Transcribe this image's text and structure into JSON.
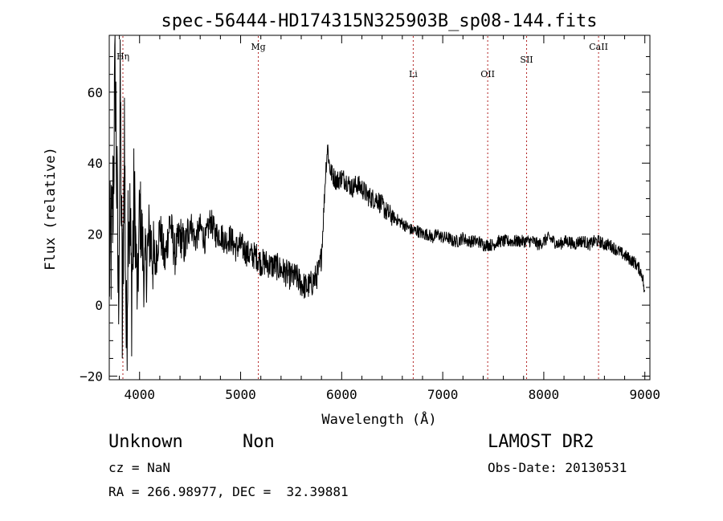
{
  "chart_data": {
    "type": "line",
    "title": "spec-56444-HD174315N325903B_sp08-144.fits",
    "xlabel": "Wavelength (Å)",
    "ylabel": "Flux (relative)",
    "xlim": [
      3700,
      9050
    ],
    "ylim": [
      -21,
      76
    ],
    "xticks": [
      4000,
      5000,
      6000,
      7000,
      8000,
      9000
    ],
    "yticks": [
      -20,
      0,
      20,
      40,
      60
    ],
    "xtick_labels": [
      "4000",
      "5000",
      "6000",
      "7000",
      "8000",
      "9000"
    ],
    "ytick_labels": [
      "−20",
      "0",
      "20",
      "40",
      "60"
    ],
    "grid": false,
    "line_color": "#000000",
    "marker_color": "#b22222",
    "series": [
      {
        "x": [
          3700,
          3730,
          3760,
          3790,
          3810,
          3830,
          3850,
          3870,
          3890,
          3920,
          3950,
          3980,
          4000,
          4050,
          4100,
          4150,
          4200,
          4250,
          4300,
          4350,
          4400,
          4450,
          4500,
          4550,
          4600,
          4650,
          4700,
          4750,
          4800,
          4850,
          4900,
          4950,
          5000,
          5050,
          5100,
          5150,
          5200,
          5250,
          5300,
          5350,
          5400,
          5450,
          5500,
          5550,
          5600,
          5650,
          5700,
          5750,
          5780,
          5800,
          5820,
          5840,
          5860,
          5880,
          5900,
          5950,
          6000,
          6050,
          6100,
          6150,
          6200,
          6250,
          6300,
          6350,
          6400,
          6450,
          6500,
          6550,
          6600,
          6650,
          6700,
          6750,
          6800,
          6850,
          6900,
          6950,
          7000,
          7050,
          7100,
          7150,
          7200,
          7250,
          7300,
          7350,
          7400,
          7450,
          7500,
          7550,
          7600,
          7650,
          7700,
          7750,
          7800,
          7850,
          7900,
          7950,
          8000,
          8050,
          8100,
          8150,
          8200,
          8250,
          8300,
          8350,
          8400,
          8450,
          8500,
          8550,
          8600,
          8650,
          8700,
          8750,
          8800,
          8850,
          8900,
          8950,
          8980,
          9000
        ],
        "values": [
          10,
          20,
          66,
          0,
          60,
          -10,
          50,
          -15,
          35,
          5,
          30,
          0,
          28,
          8,
          20,
          10,
          22,
          12,
          24,
          14,
          20,
          16,
          24,
          18,
          22,
          18,
          24,
          20,
          20,
          18,
          19,
          16,
          17,
          15,
          14,
          14,
          12,
          12,
          11,
          11,
          10,
          9,
          8,
          8,
          6,
          5,
          6,
          8,
          10,
          14,
          25,
          37,
          45,
          39,
          37,
          35,
          36,
          35,
          33,
          34,
          33,
          31,
          30,
          30,
          28,
          26,
          25,
          24,
          23,
          22,
          21,
          21,
          20,
          20,
          19,
          20,
          19,
          19,
          18,
          18,
          19,
          18,
          18,
          18,
          17,
          17,
          17,
          18,
          18,
          18,
          18,
          18,
          18,
          18,
          18,
          17,
          18,
          19,
          18,
          17,
          18,
          18,
          17,
          18,
          18,
          17,
          18,
          18,
          17,
          17,
          16,
          15,
          14,
          13,
          12,
          10,
          8,
          2
        ]
      }
    ],
    "lines": [
      {
        "label": "Hη",
        "x": 3835
      },
      {
        "label": "Mg",
        "x": 5175
      },
      {
        "label": "Li",
        "x": 6708
      },
      {
        "label": "OII",
        "x": 7445
      },
      {
        "label": "SII",
        "x": 7830
      },
      {
        "label": "CaII",
        "x": 8542
      }
    ]
  },
  "info": {
    "class": "Unknown",
    "subclass": "Non",
    "cz": "cz = NaN",
    "coords": "RA = 266.98977, DEC =  32.39881",
    "survey": "LAMOST DR2",
    "obs_date": "Obs-Date: 20130531"
  }
}
